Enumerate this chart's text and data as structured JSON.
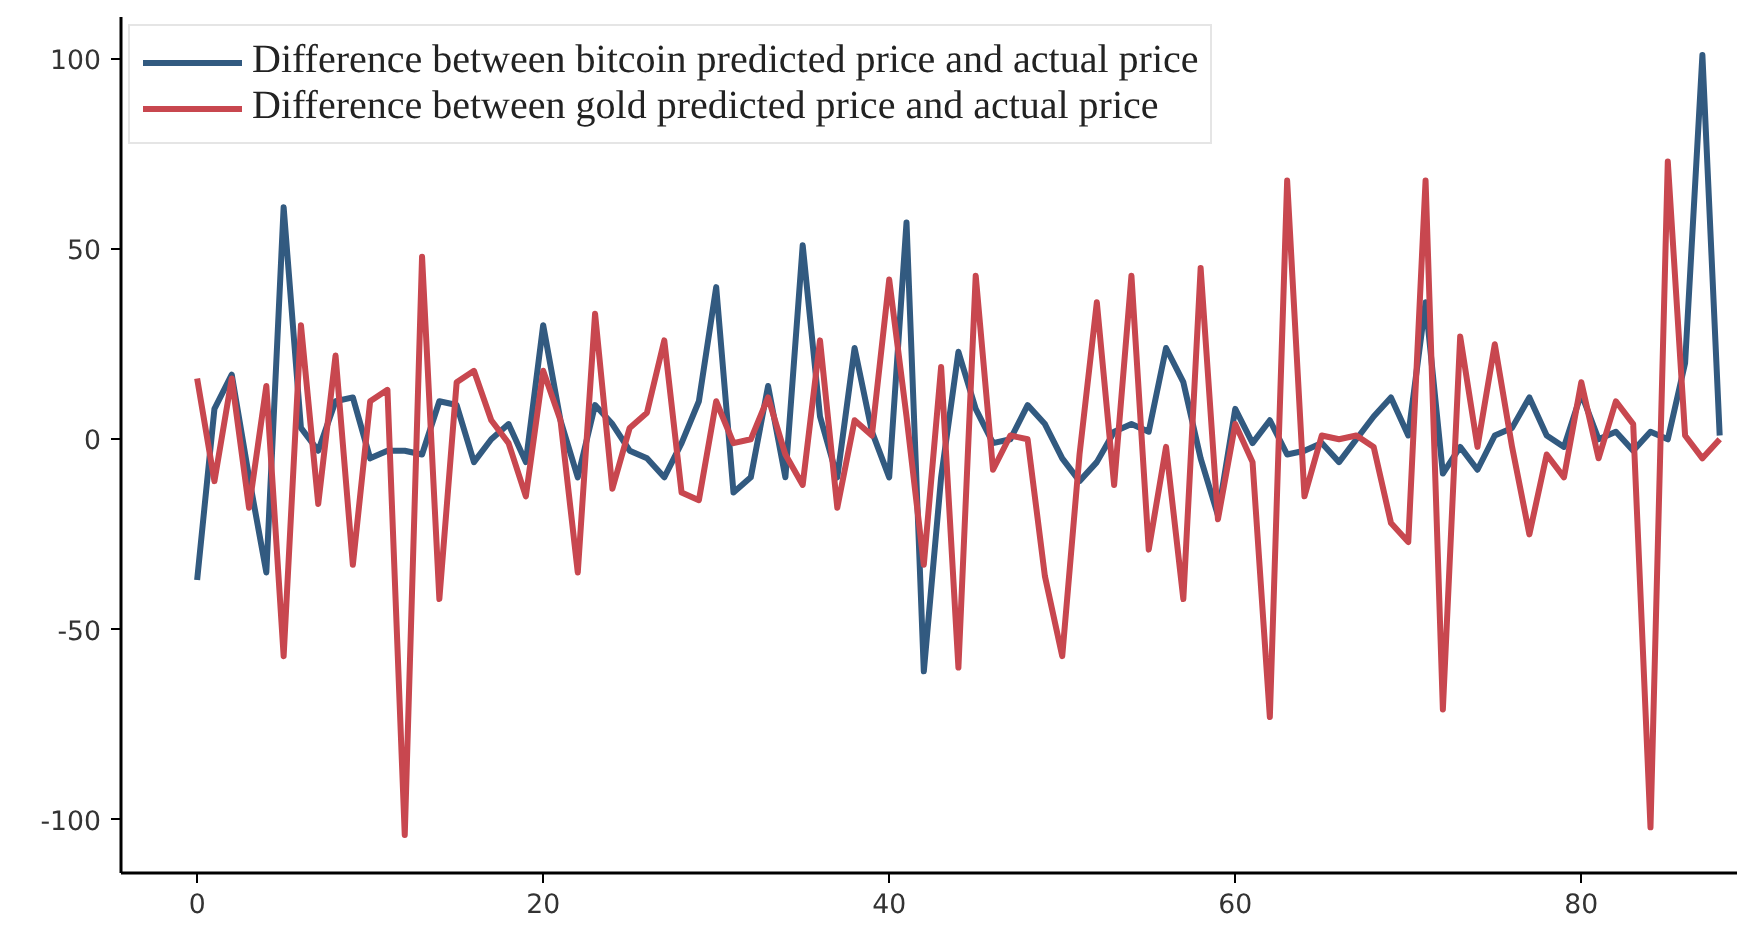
{
  "chart_data": {
    "type": "line",
    "x": [
      0,
      1,
      2,
      3,
      4,
      5,
      6,
      7,
      8,
      9,
      10,
      11,
      12,
      13,
      14,
      15,
      16,
      17,
      18,
      19,
      20,
      21,
      22,
      23,
      24,
      25,
      26,
      27,
      28,
      29,
      30,
      31,
      32,
      33,
      34,
      35,
      36,
      37,
      38,
      39,
      40,
      41,
      42,
      43,
      44,
      45,
      46,
      47,
      48,
      49,
      50,
      51,
      52,
      53,
      54,
      55,
      56,
      57,
      58,
      59,
      60,
      61,
      62,
      63,
      64,
      65,
      66,
      67,
      68,
      69,
      70,
      71,
      72,
      73,
      74,
      75,
      76,
      77,
      78,
      79,
      80,
      81,
      82,
      83,
      84,
      85,
      86,
      87,
      88
    ],
    "series": [
      {
        "name": "Difference between bitcoin predicted price and actual price",
        "color": "#325a80",
        "values": [
          -37,
          8,
          17,
          -10,
          -35,
          61,
          3,
          -3,
          10,
          11,
          -5,
          -3,
          -3,
          -4,
          10,
          9,
          -6,
          0,
          4,
          -6,
          30,
          5,
          -10,
          9,
          4,
          -3,
          -5,
          -10,
          -1,
          10,
          40,
          -14,
          -10,
          14,
          -10,
          51,
          6,
          -10,
          24,
          2,
          -10,
          57,
          -61,
          -10,
          23,
          8,
          -1,
          0,
          9,
          4,
          -5,
          -11,
          -6,
          2,
          4,
          2,
          24,
          15,
          -5,
          -20,
          8,
          -1,
          5,
          -4,
          -3,
          -1,
          -6,
          0,
          6,
          11,
          1,
          36,
          -9,
          -2,
          -8,
          1,
          3,
          11,
          1,
          -2,
          12,
          0,
          2,
          -3,
          2,
          0,
          20,
          101,
          1
        ]
      },
      {
        "name": "Difference between gold predicted price and actual price",
        "color": "#c8474f",
        "values": [
          16,
          -11,
          16,
          -18,
          14,
          -57,
          30,
          -17,
          22,
          -33,
          10,
          13,
          -104,
          48,
          -42,
          15,
          18,
          5,
          -1,
          -15,
          18,
          5,
          -35,
          33,
          -13,
          3,
          7,
          26,
          -14,
          -16,
          10,
          -1,
          0,
          11,
          -4,
          -12,
          26,
          -18,
          5,
          1,
          42,
          6,
          -33,
          19,
          -60,
          43,
          -8,
          1,
          0,
          -36,
          -57,
          -4,
          36,
          -12,
          43,
          -29,
          -2,
          -42,
          45,
          -21,
          4,
          -6,
          -73,
          68,
          -15,
          1,
          0,
          1,
          -2,
          -22,
          -27,
          68,
          -71,
          27,
          -2,
          25,
          -2,
          -25,
          -4,
          -10,
          15,
          -5,
          10,
          4,
          -102,
          73,
          1,
          -5,
          0
        ]
      }
    ],
    "xlim": [
      -4.4,
      89
    ],
    "ylim": [
      -114,
      111
    ],
    "xticks": [
      0,
      20,
      40,
      60,
      80
    ],
    "yticks": [
      -100,
      -50,
      0,
      50,
      100
    ],
    "grid": false,
    "legend": "top left",
    "line_style": "solid",
    "marker": "none"
  }
}
